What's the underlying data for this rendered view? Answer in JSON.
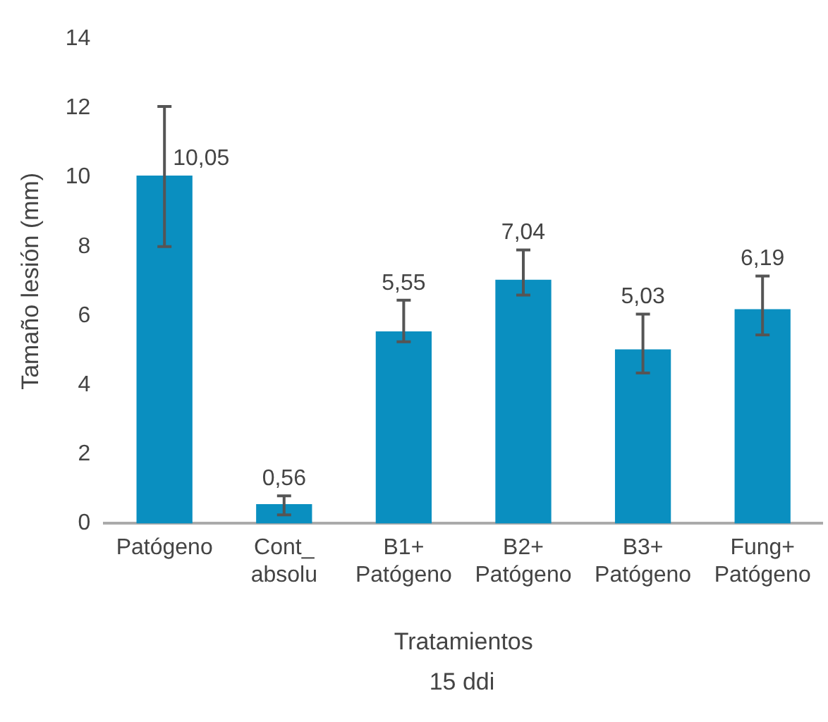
{
  "chart_data": {
    "type": "bar",
    "xlabel": "Tratamientos",
    "ylabel": "Tamaño lesión (mm)",
    "annotations": [
      "15 ddi"
    ],
    "categories": [
      "Patógeno",
      "Cont_ absolu",
      "B1+ Patógeno",
      "B2+ Patógeno",
      "B3+ Patógeno",
      "Fung+ Patógeno"
    ],
    "values": [
      10.05,
      0.56,
      5.55,
      7.04,
      5.03,
      6.19
    ],
    "value_labels": [
      "10,05",
      "0,56",
      "5,55",
      "7,04",
      "5,03",
      "6,19"
    ],
    "errors": [
      [
        8.0,
        12.05
      ],
      [
        0.25,
        0.8
      ],
      [
        5.25,
        6.45
      ],
      [
        6.6,
        7.9
      ],
      [
        4.35,
        6.05
      ],
      [
        5.45,
        7.15
      ]
    ],
    "color": "#0a8fc0",
    "ylim": [
      0,
      14
    ],
    "yticks": [
      0,
      2,
      4,
      6,
      8,
      10,
      12,
      14
    ],
    "grid": false,
    "legend": false
  }
}
